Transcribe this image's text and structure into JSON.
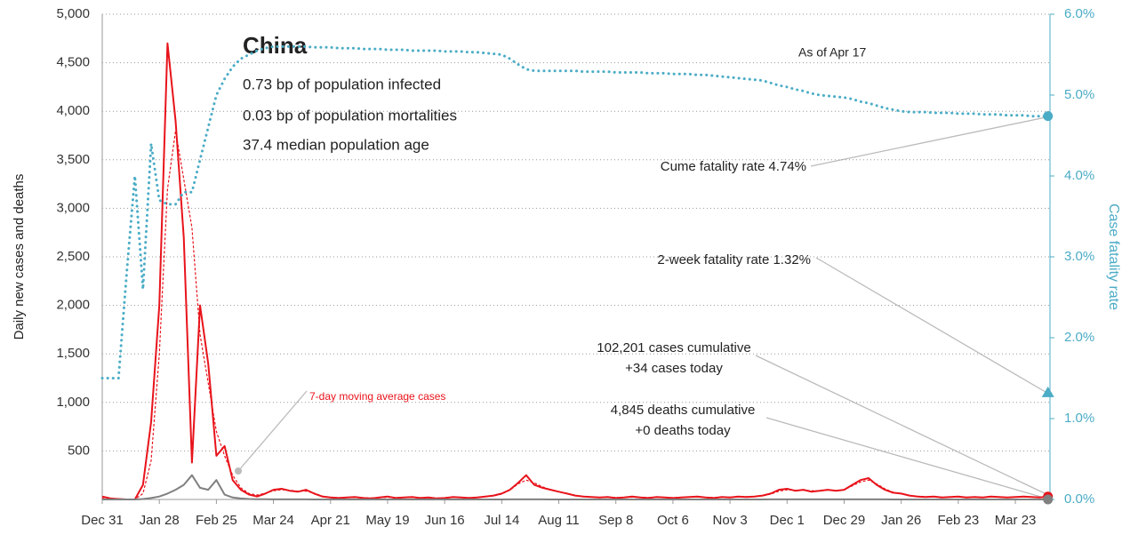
{
  "chart_data": {
    "type": "line",
    "title": "China",
    "notes": [
      "0.73 bp of population infected",
      "0.03 bp of population mortalities",
      "37.4 median population age"
    ],
    "as_of": "As of Apr 17",
    "ylabel": "Daily new cases and deaths",
    "y2label": "Case fatality rate",
    "annotations": {
      "cume": "Cume fatality rate 4.74%",
      "two_week": "2-week fatality rate 1.32%",
      "cases_cum": "102,201 cases cumulative",
      "cases_today": "+34 cases today",
      "deaths_cum": "4,845 deaths cumulative",
      "deaths_today": "+0 deaths today"
    },
    "two_week_cfr": 1.32,
    "two_week_color": "#4bacc6",
    "grid": true,
    "ylim": [
      0,
      5000
    ],
    "yticks": [
      500,
      {
        "value": 1000,
        "label": "1,000"
      },
      {
        "value": 1500,
        "label": "1,500"
      },
      {
        "value": 2000,
        "label": "2,000"
      },
      {
        "value": 2500,
        "label": "2,500"
      },
      {
        "value": 3000,
        "label": "3,000"
      },
      {
        "value": 3500,
        "label": "3,500"
      },
      {
        "value": 4000,
        "label": "4,000"
      },
      {
        "value": 4500,
        "label": "4,500"
      },
      {
        "value": 5000,
        "label": "5,000"
      }
    ],
    "y2lim": [
      0,
      6
    ],
    "y2ticks": [
      {
        "value": 0,
        "label": "0.0%"
      },
      {
        "value": 1,
        "label": "1.0%"
      },
      {
        "value": 2,
        "label": "2.0%"
      },
      {
        "value": 3,
        "label": "3.0%"
      },
      {
        "value": 4,
        "label": "4.0%"
      },
      {
        "value": 5,
        "label": "5.0%"
      },
      {
        "value": 6,
        "label": "6.0%"
      }
    ],
    "categories": [
      "Dec 31",
      null,
      null,
      null,
      null,
      null,
      null,
      "Jan 28",
      null,
      null,
      null,
      null,
      null,
      null,
      "Feb 25",
      null,
      null,
      null,
      null,
      null,
      null,
      "Mar 24",
      null,
      null,
      null,
      null,
      null,
      null,
      "Apr 21",
      null,
      null,
      null,
      null,
      null,
      null,
      "May 19",
      null,
      null,
      null,
      null,
      null,
      null,
      "Jun 16",
      null,
      null,
      null,
      null,
      null,
      null,
      "Jul 14",
      null,
      null,
      null,
      null,
      null,
      null,
      "Aug 11",
      null,
      null,
      null,
      null,
      null,
      null,
      "Sep 8",
      null,
      null,
      null,
      null,
      null,
      null,
      "Oct 6",
      null,
      null,
      null,
      null,
      null,
      null,
      "Nov 3",
      null,
      null,
      null,
      null,
      null,
      null,
      "Dec 1",
      null,
      null,
      null,
      null,
      null,
      null,
      "Dec 29",
      null,
      null,
      null,
      null,
      null,
      null,
      "Jan 26",
      null,
      null,
      null,
      null,
      null,
      null,
      "Feb 23",
      null,
      null,
      null,
      null,
      null,
      null,
      "Mar 23",
      null,
      null,
      null,
      null
    ],
    "series": [
      {
        "color": "#e8131b",
        "style": "solid",
        "width": 2,
        "end_marker": true,
        "values": [
          30,
          10,
          5,
          0,
          0,
          150,
          800,
          2000,
          4700,
          3900,
          2700,
          380,
          2000,
          1400,
          450,
          550,
          200,
          100,
          50,
          30,
          60,
          100,
          110,
          90,
          80,
          100,
          60,
          30,
          20,
          15,
          20,
          25,
          15,
          10,
          20,
          30,
          15,
          20,
          25,
          15,
          20,
          10,
          15,
          25,
          20,
          15,
          20,
          30,
          40,
          60,
          100,
          170,
          250,
          150,
          120,
          100,
          80,
          60,
          40,
          30,
          25,
          20,
          25,
          15,
          20,
          30,
          20,
          15,
          25,
          20,
          15,
          20,
          25,
          30,
          20,
          15,
          25,
          20,
          30,
          25,
          30,
          40,
          60,
          100,
          110,
          90,
          100,
          80,
          90,
          100,
          90,
          100,
          150,
          200,
          220,
          150,
          100,
          70,
          60,
          40,
          30,
          25,
          30,
          20,
          25,
          30,
          20,
          25,
          20,
          30,
          25,
          20,
          25,
          30,
          25,
          20,
          30
        ]
      },
      {
        "name": "7-day moving average cases",
        "color": "#e8131b",
        "style": "dotted",
        "width": 1.2,
        "values": [
          10,
          10,
          5,
          3,
          3,
          60,
          400,
          1500,
          3200,
          3800,
          3300,
          2800,
          1700,
          1200,
          700,
          450,
          250,
          120,
          60,
          45,
          65,
          90,
          100,
          95,
          85,
          85,
          65,
          35,
          22,
          18,
          18,
          20,
          18,
          16,
          18,
          22,
          20,
          20,
          20,
          18,
          17,
          15,
          17,
          20,
          20,
          18,
          22,
          28,
          38,
          55,
          95,
          160,
          200,
          170,
          130,
          100,
          80,
          60,
          42,
          32,
          26,
          22,
          22,
          20,
          20,
          24,
          22,
          20,
          22,
          20,
          18,
          20,
          24,
          26,
          22,
          20,
          22,
          24,
          26,
          28,
          30,
          38,
          55,
          85,
          100,
          95,
          95,
          90,
          90,
          95,
          92,
          100,
          140,
          180,
          200,
          160,
          110,
          75,
          58,
          42,
          32,
          28,
          27,
          24,
          25,
          26,
          23,
          24,
          22,
          26,
          24,
          22,
          24,
          26,
          25,
          23,
          28
        ]
      },
      {
        "color": "#808080",
        "style": "solid",
        "width": 2,
        "end_marker": true,
        "values": [
          0,
          0,
          0,
          0,
          0,
          5,
          15,
          30,
          60,
          100,
          150,
          250,
          120,
          100,
          200,
          50,
          20,
          10,
          5,
          3,
          2,
          1,
          1,
          1,
          1,
          1,
          0,
          0,
          0,
          0,
          0,
          0,
          0,
          0,
          0,
          0,
          0,
          0,
          0,
          0,
          0,
          0,
          0,
          0,
          0,
          0,
          0,
          0,
          0,
          0,
          1,
          1,
          1,
          1,
          1,
          0,
          0,
          0,
          0,
          0,
          0,
          0,
          0,
          0,
          0,
          0,
          0,
          0,
          0,
          0,
          0,
          0,
          0,
          0,
          0,
          0,
          0,
          0,
          0,
          0,
          0,
          0,
          1,
          1,
          1,
          1,
          1,
          1,
          1,
          1,
          1,
          1,
          1,
          1,
          1,
          1,
          1,
          0,
          0,
          0,
          0,
          0,
          0,
          0,
          0,
          0,
          0,
          0,
          0,
          0,
          0,
          0,
          0,
          0,
          0,
          0,
          0
        ]
      },
      {
        "color": "#4bacc6",
        "style": "dotted",
        "width": 3,
        "axis": "y2",
        "end_marker": true,
        "values": [
          1.5,
          1.5,
          1.5,
          2.8,
          4.0,
          2.6,
          4.4,
          3.7,
          3.65,
          3.65,
          3.8,
          3.8,
          4.2,
          4.6,
          5.0,
          5.2,
          5.35,
          5.45,
          5.5,
          5.55,
          5.58,
          5.6,
          5.6,
          5.6,
          5.6,
          5.6,
          5.59,
          5.59,
          5.59,
          5.58,
          5.58,
          5.58,
          5.57,
          5.57,
          5.57,
          5.56,
          5.56,
          5.56,
          5.55,
          5.55,
          5.55,
          5.55,
          5.54,
          5.54,
          5.54,
          5.53,
          5.53,
          5.52,
          5.51,
          5.5,
          5.45,
          5.38,
          5.32,
          5.3,
          5.3,
          5.3,
          5.3,
          5.3,
          5.3,
          5.29,
          5.29,
          5.29,
          5.29,
          5.28,
          5.28,
          5.28,
          5.28,
          5.27,
          5.27,
          5.27,
          5.26,
          5.26,
          5.26,
          5.25,
          5.25,
          5.24,
          5.23,
          5.22,
          5.21,
          5.2,
          5.19,
          5.18,
          5.15,
          5.12,
          5.1,
          5.07,
          5.05,
          5.02,
          5.0,
          4.99,
          4.98,
          4.97,
          4.95,
          4.92,
          4.9,
          4.87,
          4.84,
          4.82,
          4.8,
          4.79,
          4.79,
          4.79,
          4.78,
          4.78,
          4.78,
          4.77,
          4.77,
          4.77,
          4.76,
          4.76,
          4.76,
          4.75,
          4.75,
          4.75,
          4.74,
          4.74,
          4.74
        ]
      }
    ]
  }
}
